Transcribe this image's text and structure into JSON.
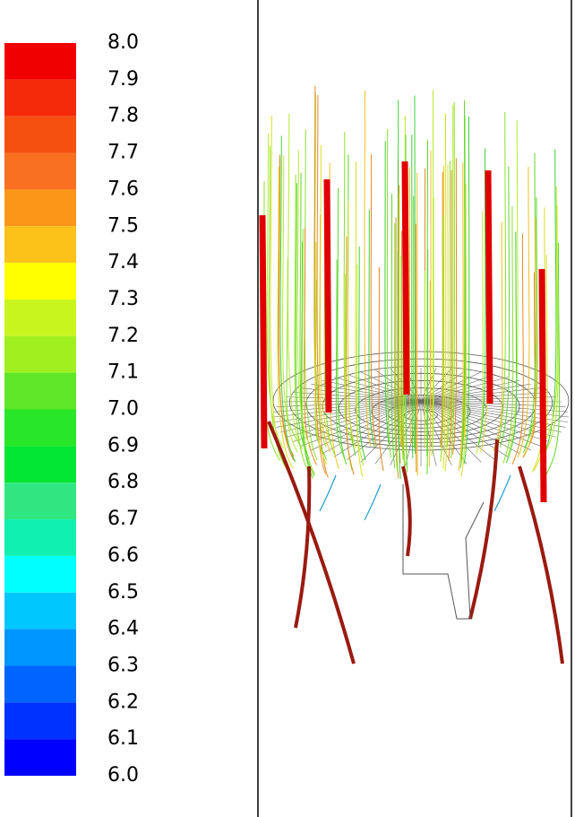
{
  "colorbar": {
    "ticks": [
      {
        "value": 8.0,
        "label": "8.0"
      },
      {
        "value": 7.9,
        "label": "7.9"
      },
      {
        "value": 7.8,
        "label": "7.8"
      },
      {
        "value": 7.7,
        "label": "7.7"
      },
      {
        "value": 7.6,
        "label": "7.6"
      },
      {
        "value": 7.5,
        "label": "7.5"
      },
      {
        "value": 7.4,
        "label": "7.4"
      },
      {
        "value": 7.3,
        "label": "7.3"
      },
      {
        "value": 7.2,
        "label": "7.2"
      },
      {
        "value": 7.1,
        "label": "7.1"
      },
      {
        "value": 7.0,
        "label": "7.0"
      },
      {
        "value": 6.9,
        "label": "6.9"
      },
      {
        "value": 6.8,
        "label": "6.8"
      },
      {
        "value": 6.7,
        "label": "6.7"
      },
      {
        "value": 6.6,
        "label": "6.6"
      },
      {
        "value": 6.5,
        "label": "6.5"
      },
      {
        "value": 6.4,
        "label": "6.4"
      },
      {
        "value": 6.3,
        "label": "6.3"
      },
      {
        "value": 6.2,
        "label": "6.2"
      },
      {
        "value": 6.1,
        "label": "6.1"
      },
      {
        "value": 6.0,
        "label": "6.0"
      }
    ],
    "colors": [
      "#f00000",
      "#f52a0a",
      "#f5500f",
      "#f87020",
      "#fb9618",
      "#fcc21a",
      "#ffff00",
      "#c8f51e",
      "#a0f020",
      "#5ee628",
      "#28e628",
      "#00e632",
      "#30e680",
      "#10f0b0",
      "#00ffff",
      "#00c8ff",
      "#0096ff",
      "#0064ff",
      "#0032ff",
      "#0000ff"
    ]
  }
}
